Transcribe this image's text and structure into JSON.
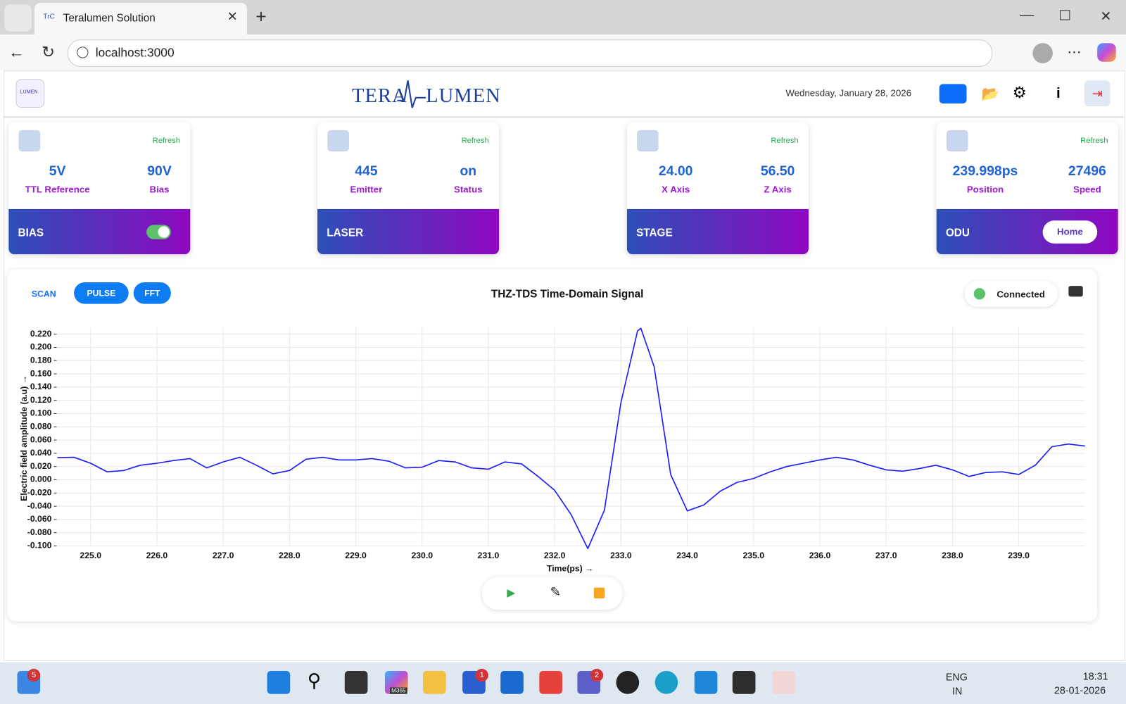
{
  "browser": {
    "tab_title": "Teralumen Solution",
    "address": "localhost:3000"
  },
  "header": {
    "logo_small": "LUMEN",
    "logo_left": "TERA",
    "logo_right": "LUMEN",
    "date": "Wednesday, January 28, 2026"
  },
  "cards": [
    {
      "refresh": "Refresh",
      "stats": [
        {
          "value": "5V",
          "label": "TTL Reference"
        },
        {
          "value": "90V",
          "label": "Bias"
        }
      ],
      "title": "BIAS"
    },
    {
      "refresh": "Refresh",
      "stats": [
        {
          "value": "445",
          "label": "Emitter"
        },
        {
          "value": "on",
          "label": "Status"
        }
      ],
      "title": "LASER"
    },
    {
      "refresh": "Refresh",
      "stats": [
        {
          "value": "24.00",
          "label": "X Axis"
        },
        {
          "value": "56.50",
          "label": "Z Axis"
        }
      ],
      "title": "STAGE"
    },
    {
      "refresh": "Refresh",
      "stats": [
        {
          "value": "239.998ps",
          "label": "Position"
        },
        {
          "value": "27496",
          "label": "Speed"
        }
      ],
      "title": "ODU",
      "button": "Home"
    }
  ],
  "panel": {
    "tabs": [
      "SCAN",
      "PULSE",
      "FFT"
    ],
    "status": "Connected"
  },
  "chart_data": {
    "type": "line",
    "title": "THZ-TDS Time-Domain Signal",
    "x_label": "Time(ps) →",
    "y_label": "Electric field amplitude (a.u) →",
    "xlim": [
      224.5,
      240
    ],
    "ylim": [
      -0.1,
      0.23
    ],
    "xticks": [
      {
        "value": 225,
        "label": "225.0"
      },
      {
        "value": 226,
        "label": "226.0"
      },
      {
        "value": 227,
        "label": "227.0"
      },
      {
        "value": 228,
        "label": "228.0"
      },
      {
        "value": 229,
        "label": "229.0"
      },
      {
        "value": 230,
        "label": "230.0"
      },
      {
        "value": 231,
        "label": "231.0"
      },
      {
        "value": 232,
        "label": "232.0"
      },
      {
        "value": 233,
        "label": "233.0"
      },
      {
        "value": 234,
        "label": "234.0"
      },
      {
        "value": 235,
        "label": "235.0"
      },
      {
        "value": 236,
        "label": "236.0"
      },
      {
        "value": 237,
        "label": "237.0"
      },
      {
        "value": 238,
        "label": "238.0"
      },
      {
        "value": 239,
        "label": "239.0"
      }
    ],
    "yticks": [
      {
        "value": -0.1,
        "label": "-0.100"
      },
      {
        "value": -0.08,
        "label": "-0.080"
      },
      {
        "value": -0.06,
        "label": "-0.060"
      },
      {
        "value": -0.04,
        "label": "-0.040"
      },
      {
        "value": -0.02,
        "label": "-0.020"
      },
      {
        "value": 0,
        "label": "0.000"
      },
      {
        "value": 0.02,
        "label": "0.020"
      },
      {
        "value": 0.04,
        "label": "0.040"
      },
      {
        "value": 0.06,
        "label": "0.060"
      },
      {
        "value": 0.08,
        "label": "0.080"
      },
      {
        "value": 0.1,
        "label": "0.100"
      },
      {
        "value": 0.12,
        "label": "0.120"
      },
      {
        "value": 0.14,
        "label": "0.140"
      },
      {
        "value": 0.16,
        "label": "0.160"
      },
      {
        "value": 0.18,
        "label": "0.180"
      },
      {
        "value": 0.2,
        "label": "0.200"
      },
      {
        "value": 0.22,
        "label": "0.220"
      }
    ],
    "grid": true,
    "color": "#1a1aff",
    "x": [
      224.5,
      224.75,
      225,
      225.25,
      225.5,
      225.75,
      226,
      226.25,
      226.5,
      226.75,
      227,
      227.25,
      227.5,
      227.75,
      228,
      228.25,
      228.5,
      228.75,
      229,
      229.25,
      229.5,
      229.75,
      230,
      230.25,
      230.5,
      230.75,
      231,
      231.25,
      231.5,
      231.75,
      232,
      232.25,
      232.5,
      232.75,
      233,
      233.25,
      233.3,
      233.5,
      233.75,
      234,
      234.25,
      234.5,
      234.75,
      235,
      235.25,
      235.5,
      235.75,
      236,
      236.25,
      236.5,
      236.75,
      237,
      237.25,
      237.5,
      237.75,
      238,
      238.25,
      238.5,
      238.75,
      239,
      239.25,
      239.5,
      239.75,
      240
    ],
    "values": [
      0.0335,
      0.034,
      0.025,
      0.012,
      0.014,
      0.022,
      0.025,
      0.029,
      0.032,
      0.018,
      0.027,
      0.034,
      0.022,
      0.009,
      0.014,
      0.031,
      0.034,
      0.03,
      0.03,
      0.032,
      0.028,
      0.018,
      0.019,
      0.029,
      0.027,
      0.018,
      0.016,
      0.027,
      0.024,
      0.005,
      -0.016,
      -0.053,
      -0.104,
      -0.046,
      0.117,
      0.225,
      0.229,
      0.171,
      0.008,
      -0.047,
      -0.038,
      -0.017,
      -0.004,
      0.002,
      0.012,
      0.02,
      0.025,
      0.03,
      0.034,
      0.03,
      0.022,
      0.015,
      0.013,
      0.017,
      0.022,
      0.015,
      0.005,
      0.011,
      0.012,
      0.008,
      0.022,
      0.05,
      0.054,
      0.051
    ]
  },
  "taskbar": {
    "badge_widgets": "5",
    "app_label": "M365",
    "badge_store": "1",
    "badge_teams": "2",
    "lang": "ENG",
    "region": "IN",
    "time": "18:31",
    "date": "28-01-2026"
  }
}
